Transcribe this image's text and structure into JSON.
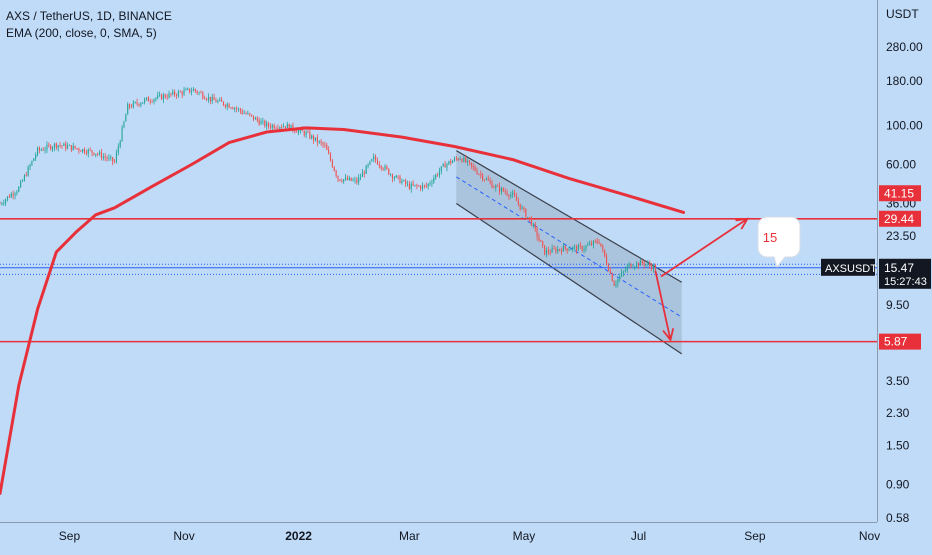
{
  "header": {
    "symbol_line": "AXS / TetherUS, 1D, BINANCE",
    "indicator_line": "EMA (200, close, 0, SMA, 5)"
  },
  "note": {
    "text": "15"
  },
  "colors": {
    "background": "#bfdbf7",
    "ema": "#e8303a",
    "level": "#e8303a",
    "channel_fill": "#9ab0c8",
    "channel_edge": "#3a3f4a",
    "midline": "#2962ff",
    "candle_up": "#26a69a",
    "candle_down": "#ef5350",
    "axis_text": "#131722",
    "last_price_box": "#131722",
    "price_line": "#2962ff"
  },
  "chart_data": {
    "type": "candlestick",
    "title": "AXS / TetherUS, 1D, BINANCE",
    "indicator": "EMA (200, close, 0, SMA, 5)",
    "y_axis": {
      "unit_label": "USDT",
      "scale": "log",
      "range": [
        0.55,
        520
      ],
      "ticks": [
        280.0,
        180.0,
        100.0,
        60.0,
        36.0,
        23.5,
        9.5,
        3.5,
        2.3,
        1.5,
        0.9,
        0.58
      ]
    },
    "x_axis": {
      "range": [
        "2021-07-26",
        "2022-11-05"
      ],
      "ticks": [
        {
          "date": "2021-09-01",
          "label": "Sep"
        },
        {
          "date": "2021-11-01",
          "label": "Nov"
        },
        {
          "date": "2022-01-01",
          "label": "2022"
        },
        {
          "date": "2022-03-01",
          "label": "Mar"
        },
        {
          "date": "2022-05-01",
          "label": "May"
        },
        {
          "date": "2022-07-01",
          "label": "Jul"
        },
        {
          "date": "2022-09-01",
          "label": "Sep"
        },
        {
          "date": "2022-11-01",
          "label": "Nov"
        }
      ]
    },
    "price_path": [
      [
        "2021-07-26",
        36
      ],
      [
        "2021-08-05",
        44
      ],
      [
        "2021-08-15",
        72
      ],
      [
        "2021-08-25",
        78
      ],
      [
        "2021-09-05",
        74
      ],
      [
        "2021-09-15",
        70
      ],
      [
        "2021-09-25",
        62
      ],
      [
        "2021-10-02",
        128
      ],
      [
        "2021-10-12",
        140
      ],
      [
        "2021-10-25",
        150
      ],
      [
        "2021-11-06",
        160
      ],
      [
        "2021-11-16",
        140
      ],
      [
        "2021-11-26",
        130
      ],
      [
        "2021-12-05",
        115
      ],
      [
        "2021-12-15",
        100
      ],
      [
        "2021-12-25",
        100
      ],
      [
        "2022-01-05",
        90
      ],
      [
        "2022-01-15",
        76
      ],
      [
        "2022-01-22",
        50
      ],
      [
        "2022-02-01",
        48
      ],
      [
        "2022-02-10",
        65
      ],
      [
        "2022-02-20",
        52
      ],
      [
        "2022-03-01",
        45
      ],
      [
        "2022-03-10",
        45
      ],
      [
        "2022-03-20",
        60
      ],
      [
        "2022-03-28",
        66
      ],
      [
        "2022-04-05",
        56
      ],
      [
        "2022-04-15",
        45
      ],
      [
        "2022-04-25",
        40
      ],
      [
        "2022-05-05",
        28
      ],
      [
        "2022-05-12",
        19
      ],
      [
        "2022-05-22",
        20
      ],
      [
        "2022-06-01",
        20
      ],
      [
        "2022-06-10",
        22
      ],
      [
        "2022-06-18",
        12.5
      ],
      [
        "2022-06-26",
        16
      ],
      [
        "2022-07-03",
        16.5
      ],
      [
        "2022-07-10",
        15.47
      ]
    ],
    "ema200": [
      [
        "2021-07-26",
        0.8
      ],
      [
        "2021-08-05",
        3.3
      ],
      [
        "2021-08-15",
        9
      ],
      [
        "2021-08-25",
        19
      ],
      [
        "2021-09-05",
        25
      ],
      [
        "2021-09-15",
        31
      ],
      [
        "2021-09-25",
        34
      ],
      [
        "2021-10-15",
        45
      ],
      [
        "2021-11-05",
        60
      ],
      [
        "2021-11-25",
        80
      ],
      [
        "2021-12-15",
        92
      ],
      [
        "2022-01-05",
        97
      ],
      [
        "2022-01-25",
        95
      ],
      [
        "2022-02-25",
        86
      ],
      [
        "2022-03-25",
        76
      ],
      [
        "2022-04-25",
        64
      ],
      [
        "2022-05-25",
        50
      ],
      [
        "2022-06-25",
        40
      ],
      [
        "2022-07-25",
        32
      ]
    ],
    "levels": [
      {
        "price": 29.44,
        "label": "29.44"
      },
      {
        "price": 5.87,
        "label": "5.87"
      }
    ],
    "ema_last": {
      "price": 41.15,
      "label": "41.15"
    },
    "last_price": {
      "price": 15.47,
      "label": "15.47",
      "symbol": "AXSUSDT",
      "countdown": "15:27:43"
    },
    "price_line_band": [
      14.2,
      16.2
    ],
    "channel": {
      "upper": [
        [
          "2022-03-26",
          72
        ],
        [
          "2022-07-24",
          12.8
        ]
      ],
      "lower": [
        [
          "2022-03-26",
          36
        ],
        [
          "2022-07-24",
          5.0
        ]
      ],
      "mid": [
        [
          "2022-03-26",
          51
        ],
        [
          "2022-07-24",
          8.1
        ]
      ]
    },
    "arrows": [
      {
        "from": [
          "2022-07-10",
          14.9
        ],
        "to": [
          "2022-07-18",
          6.0
        ]
      },
      {
        "from": [
          "2022-07-13",
          13.8
        ],
        "to": [
          "2022-08-28",
          29.44
        ]
      }
    ],
    "grid": false,
    "legend": "top-left"
  }
}
